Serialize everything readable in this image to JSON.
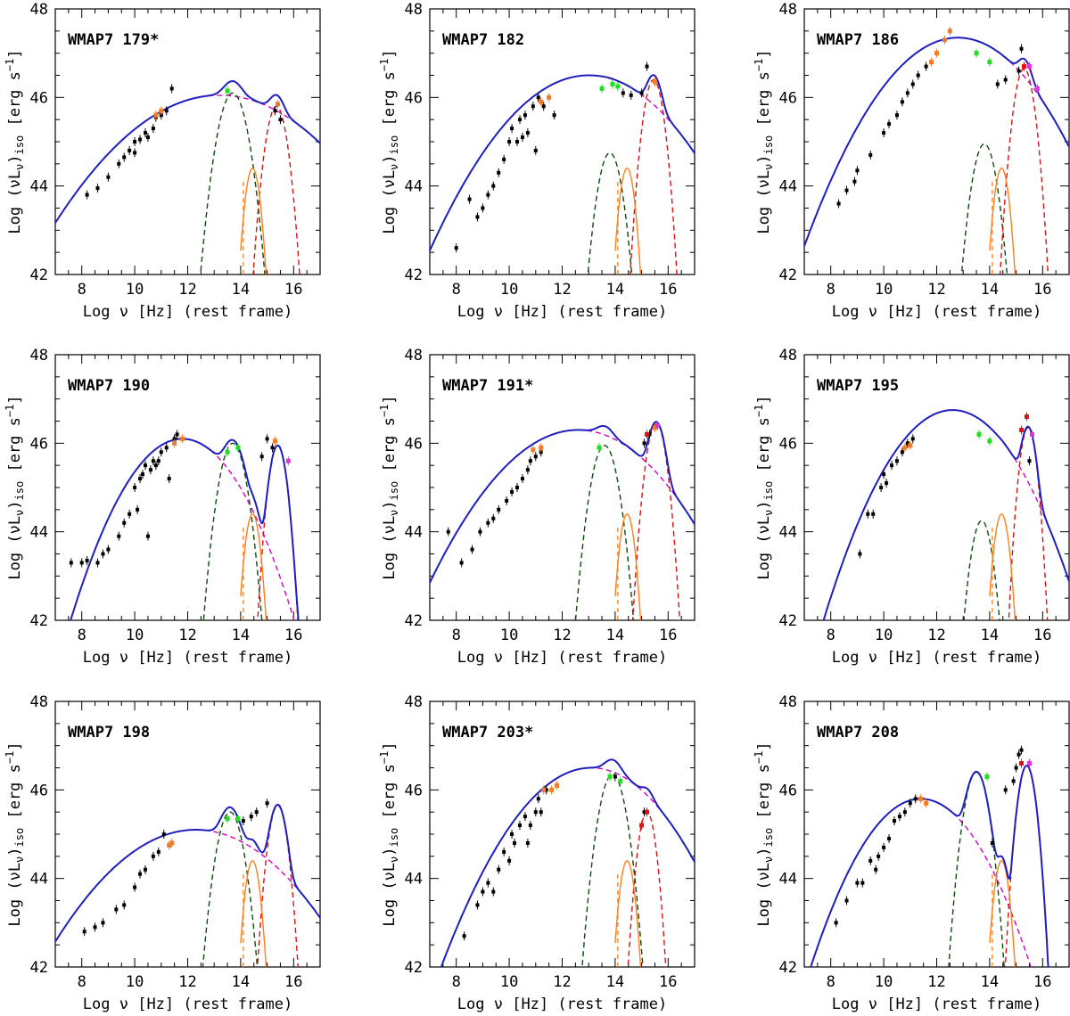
{
  "figure": {
    "x_axis_title": "Log ν [Hz] (rest frame)",
    "y_axis_title_main": "Log (νL",
    "y_axis_title_sub_nu": "ν",
    "y_axis_title_close": ")",
    "y_axis_title_iso": "iso",
    "y_axis_title_unit": " [erg s",
    "y_axis_title_exp": "−1",
    "y_axis_title_end": "]",
    "x_ticks": [
      "8",
      "10",
      "12",
      "14",
      "16"
    ],
    "y_ticks": [
      "42",
      "44",
      "46",
      "48"
    ],
    "colors": {
      "total": "#1f1fbf",
      "synchrotron": "#d400c8",
      "torus": "#0e4a0e",
      "disk": "#d41414",
      "host": "#ff7f1a",
      "data_black": "#000000",
      "data_orange": "#f07b2a",
      "data_green": "#22dd22",
      "data_magenta": "#e030e0",
      "data_red": "#e01010"
    }
  },
  "chart_data": [
    {
      "type": "scatter",
      "title": "WMAP7 179*",
      "xlim": [
        7,
        17
      ],
      "ylim": [
        42,
        48
      ],
      "sync": {
        "peak_x": 13.2,
        "peak_y": 46.05,
        "curv": 0.075
      },
      "torus": {
        "x": 13.7,
        "y": 46.1,
        "w": 0.6
      },
      "disk": {
        "x": 15.35,
        "y": 45.8,
        "w": 0.45
      },
      "observations": [
        [
          8.2,
          43.8
        ],
        [
          8.6,
          43.95
        ],
        [
          9.0,
          44.2
        ],
        [
          9.4,
          44.5
        ],
        [
          9.6,
          44.65
        ],
        [
          9.8,
          44.8
        ],
        [
          10.0,
          45.0
        ],
        [
          10.0,
          44.75
        ],
        [
          10.2,
          45.05
        ],
        [
          10.4,
          45.2
        ],
        [
          10.5,
          45.1
        ],
        [
          10.7,
          45.3
        ],
        [
          10.8,
          45.55
        ],
        [
          11.0,
          45.6
        ],
        [
          11.2,
          45.7
        ],
        [
          11.4,
          46.2
        ],
        [
          15.3,
          45.7
        ],
        [
          15.5,
          45.5
        ]
      ],
      "orange_points": [
        [
          10.8,
          45.6
        ],
        [
          11.0,
          45.7
        ],
        [
          15.4,
          45.85
        ]
      ],
      "green_points": [
        [
          13.5,
          46.15
        ]
      ],
      "magenta_points": [],
      "red_points": []
    },
    {
      "type": "scatter",
      "title": "WMAP7 182",
      "xlim": [
        7,
        17
      ],
      "ylim": [
        42,
        48
      ],
      "sync": {
        "peak_x": 13.0,
        "peak_y": 46.5,
        "curv": 0.11
      },
      "torus": {
        "x": 13.8,
        "y": 44.75,
        "w": 0.5
      },
      "disk": {
        "x": 15.45,
        "y": 46.4,
        "w": 0.42
      },
      "observations": [
        [
          8.0,
          42.6
        ],
        [
          8.5,
          43.7
        ],
        [
          8.8,
          43.3
        ],
        [
          9.0,
          43.5
        ],
        [
          9.2,
          43.8
        ],
        [
          9.4,
          44.0
        ],
        [
          9.6,
          44.3
        ],
        [
          9.8,
          44.6
        ],
        [
          10.0,
          45.0
        ],
        [
          10.1,
          45.3
        ],
        [
          10.3,
          45.0
        ],
        [
          10.4,
          45.5
        ],
        [
          10.5,
          45.1
        ],
        [
          10.6,
          45.6
        ],
        [
          10.7,
          45.2
        ],
        [
          10.9,
          45.8
        ],
        [
          11.0,
          44.8
        ],
        [
          11.1,
          46.0
        ],
        [
          11.3,
          45.8
        ],
        [
          11.7,
          45.6
        ],
        [
          14.3,
          46.1
        ],
        [
          14.6,
          46.05
        ],
        [
          15.0,
          46.1
        ],
        [
          15.2,
          46.7
        ]
      ],
      "orange_points": [
        [
          11.2,
          45.9
        ],
        [
          11.5,
          46.0
        ],
        [
          15.5,
          46.35
        ]
      ],
      "green_points": [
        [
          13.5,
          46.2
        ],
        [
          13.9,
          46.3
        ],
        [
          14.1,
          46.25
        ]
      ],
      "magenta_points": [],
      "red_points": []
    },
    {
      "type": "scatter",
      "title": "WMAP7 186",
      "xlim": [
        7,
        17
      ],
      "ylim": [
        42,
        48
      ],
      "sync": {
        "peak_x": 12.8,
        "peak_y": 47.35,
        "curv": 0.14
      },
      "torus": {
        "x": 13.8,
        "y": 44.95,
        "w": 0.5
      },
      "disk": {
        "x": 15.3,
        "y": 46.65,
        "w": 0.42
      },
      "observations": [
        [
          8.3,
          43.6
        ],
        [
          8.6,
          43.9
        ],
        [
          8.9,
          44.1
        ],
        [
          9.0,
          44.35
        ],
        [
          9.5,
          44.7
        ],
        [
          10.0,
          45.2
        ],
        [
          10.2,
          45.4
        ],
        [
          10.5,
          45.6
        ],
        [
          10.7,
          45.9
        ],
        [
          10.9,
          46.1
        ],
        [
          11.1,
          46.3
        ],
        [
          11.3,
          46.5
        ],
        [
          11.6,
          46.7
        ],
        [
          14.3,
          46.3
        ],
        [
          14.6,
          46.4
        ],
        [
          15.1,
          46.6
        ],
        [
          15.2,
          47.1
        ]
      ],
      "orange_points": [
        [
          11.8,
          46.8
        ],
        [
          12.0,
          47.0
        ],
        [
          12.3,
          47.3
        ],
        [
          12.5,
          47.5
        ]
      ],
      "green_points": [
        [
          13.5,
          47.0
        ],
        [
          14.0,
          46.8
        ]
      ],
      "magenta_points": [
        [
          15.5,
          46.7
        ],
        [
          15.8,
          46.2
        ]
      ],
      "red_points": [
        [
          15.3,
          46.7
        ]
      ]
    },
    {
      "type": "scatter",
      "title": "WMAP7 190",
      "xlim": [
        7,
        17
      ],
      "ylim": [
        42,
        48
      ],
      "sync": {
        "peak_x": 11.8,
        "peak_y": 46.1,
        "curv": 0.23
      },
      "torus": {
        "x": 13.7,
        "y": 46.0,
        "w": 0.55
      },
      "disk": {
        "x": 15.4,
        "y": 45.95,
        "w": 0.38
      },
      "observations": [
        [
          7.6,
          43.3
        ],
        [
          8.0,
          43.3
        ],
        [
          8.2,
          43.35
        ],
        [
          8.6,
          43.3
        ],
        [
          8.8,
          43.5
        ],
        [
          9.0,
          43.6
        ],
        [
          9.4,
          43.9
        ],
        [
          9.6,
          44.2
        ],
        [
          9.8,
          44.4
        ],
        [
          10.0,
          45.0
        ],
        [
          10.1,
          44.5
        ],
        [
          10.2,
          45.2
        ],
        [
          10.3,
          45.3
        ],
        [
          10.4,
          45.5
        ],
        [
          10.5,
          43.9
        ],
        [
          10.6,
          45.4
        ],
        [
          10.7,
          45.6
        ],
        [
          10.8,
          45.5
        ],
        [
          10.9,
          45.6
        ],
        [
          11.0,
          45.8
        ],
        [
          11.2,
          45.9
        ],
        [
          11.3,
          45.2
        ],
        [
          11.5,
          46.1
        ],
        [
          11.6,
          46.2
        ],
        [
          14.8,
          45.7
        ],
        [
          15.0,
          46.1
        ],
        [
          15.2,
          45.9
        ]
      ],
      "orange_points": [
        [
          11.5,
          46.0
        ],
        [
          11.8,
          46.1
        ],
        [
          15.3,
          46.05
        ]
      ],
      "green_points": [
        [
          13.5,
          45.8
        ],
        [
          13.9,
          45.9
        ]
      ],
      "magenta_points": [
        [
          15.8,
          45.6
        ]
      ],
      "red_points": []
    },
    {
      "type": "scatter",
      "title": "WMAP7 191*",
      "xlim": [
        7,
        17
      ],
      "ylim": [
        42,
        48
      ],
      "sync": {
        "peak_x": 12.6,
        "peak_y": 46.3,
        "curv": 0.11
      },
      "torus": {
        "x": 13.6,
        "y": 45.95,
        "w": 0.55
      },
      "disk": {
        "x": 15.55,
        "y": 46.45,
        "w": 0.42
      },
      "observations": [
        [
          7.7,
          44.0
        ],
        [
          8.2,
          43.3
        ],
        [
          8.6,
          43.6
        ],
        [
          8.9,
          44.0
        ],
        [
          9.2,
          44.2
        ],
        [
          9.4,
          44.3
        ],
        [
          9.6,
          44.5
        ],
        [
          9.9,
          44.7
        ],
        [
          10.1,
          44.9
        ],
        [
          10.3,
          45.0
        ],
        [
          10.5,
          45.2
        ],
        [
          10.7,
          45.4
        ],
        [
          10.8,
          45.6
        ],
        [
          11.0,
          45.7
        ],
        [
          11.2,
          45.8
        ],
        [
          15.1,
          46.0
        ],
        [
          15.3,
          46.2
        ]
      ],
      "orange_points": [
        [
          10.9,
          45.85
        ],
        [
          11.2,
          45.9
        ],
        [
          15.5,
          46.35
        ]
      ],
      "green_points": [
        [
          13.4,
          45.9
        ]
      ],
      "magenta_points": [
        [
          15.6,
          46.4
        ]
      ],
      "red_points": [
        [
          15.2,
          46.2
        ]
      ]
    },
    {
      "type": "scatter",
      "title": "WMAP7 195",
      "xlim": [
        7,
        17
      ],
      "ylim": [
        42,
        48
      ],
      "sync": {
        "peak_x": 12.6,
        "peak_y": 46.75,
        "curv": 0.2
      },
      "torus": {
        "x": 13.7,
        "y": 44.25,
        "w": 0.45
      },
      "disk": {
        "x": 15.45,
        "y": 46.35,
        "w": 0.35
      },
      "observations": [
        [
          9.1,
          43.5
        ],
        [
          9.4,
          44.4
        ],
        [
          9.6,
          44.4
        ],
        [
          9.9,
          45.0
        ],
        [
          10.0,
          45.3
        ],
        [
          10.1,
          45.1
        ],
        [
          10.3,
          45.5
        ],
        [
          10.5,
          45.6
        ],
        [
          10.7,
          45.8
        ],
        [
          10.9,
          46.0
        ],
        [
          11.1,
          46.1
        ],
        [
          15.5,
          45.6
        ]
      ],
      "orange_points": [
        [
          10.8,
          45.9
        ],
        [
          11.0,
          45.95
        ]
      ],
      "green_points": [
        [
          13.6,
          46.2
        ],
        [
          14.0,
          46.05
        ]
      ],
      "magenta_points": [
        [
          15.6,
          46.2
        ]
      ],
      "red_points": [
        [
          15.2,
          46.3
        ],
        [
          15.4,
          46.6
        ]
      ]
    },
    {
      "type": "scatter",
      "title": "WMAP7 198",
      "xlim": [
        7,
        17
      ],
      "ylim": [
        42,
        48
      ],
      "sync": {
        "peak_x": 12.3,
        "peak_y": 45.1,
        "curv": 0.09
      },
      "torus": {
        "x": 13.6,
        "y": 45.5,
        "w": 0.55
      },
      "disk": {
        "x": 15.4,
        "y": 45.65,
        "w": 0.4
      },
      "observations": [
        [
          8.1,
          42.8
        ],
        [
          8.5,
          42.9
        ],
        [
          8.8,
          43.0
        ],
        [
          9.3,
          43.3
        ],
        [
          9.6,
          43.4
        ],
        [
          10.0,
          43.8
        ],
        [
          10.2,
          44.1
        ],
        [
          10.4,
          44.2
        ],
        [
          10.7,
          44.5
        ],
        [
          10.9,
          44.6
        ],
        [
          11.1,
          45.0
        ],
        [
          14.1,
          45.3
        ],
        [
          14.4,
          45.4
        ],
        [
          14.6,
          45.5
        ],
        [
          15.0,
          45.7
        ]
      ],
      "orange_points": [
        [
          11.3,
          44.75
        ],
        [
          11.4,
          44.8
        ]
      ],
      "green_points": [
        [
          13.5,
          45.35
        ],
        [
          13.9,
          45.35
        ]
      ],
      "magenta_points": [],
      "red_points": []
    },
    {
      "type": "scatter",
      "title": "WMAP7 203*",
      "xlim": [
        7,
        17
      ],
      "ylim": [
        42,
        48
      ],
      "sync": {
        "peak_x": 13.1,
        "peak_y": 46.5,
        "curv": 0.14
      },
      "torus": {
        "x": 13.9,
        "y": 46.35,
        "w": 0.55
      },
      "disk": {
        "x": 15.2,
        "y": 45.5,
        "w": 0.38
      },
      "observations": [
        [
          8.3,
          42.7
        ],
        [
          8.8,
          43.4
        ],
        [
          9.0,
          43.7
        ],
        [
          9.2,
          43.9
        ],
        [
          9.4,
          43.7
        ],
        [
          9.6,
          44.2
        ],
        [
          9.8,
          44.6
        ],
        [
          10.0,
          44.4
        ],
        [
          10.1,
          45.0
        ],
        [
          10.2,
          44.8
        ],
        [
          10.4,
          45.2
        ],
        [
          10.6,
          45.4
        ],
        [
          10.7,
          44.8
        ],
        [
          10.8,
          45.2
        ],
        [
          11.0,
          45.5
        ],
        [
          11.1,
          45.8
        ],
        [
          11.2,
          45.5
        ],
        [
          11.4,
          46.0
        ],
        [
          14.0,
          46.3
        ],
        [
          15.1,
          45.5
        ]
      ],
      "orange_points": [
        [
          11.3,
          46.0
        ],
        [
          11.6,
          46.0
        ],
        [
          11.8,
          46.1
        ]
      ],
      "green_points": [
        [
          13.8,
          46.3
        ],
        [
          14.2,
          46.2
        ]
      ],
      "magenta_points": [],
      "red_points": [
        [
          15.0,
          45.2
        ],
        [
          15.2,
          45.5
        ]
      ]
    },
    {
      "type": "scatter",
      "title": "WMAP7 208",
      "xlim": [
        7,
        17
      ],
      "ylim": [
        42,
        48
      ],
      "sync": {
        "peak_x": 11.4,
        "peak_y": 45.8,
        "curv": 0.22
      },
      "torus": {
        "x": 13.5,
        "y": 46.4,
        "w": 0.5
      },
      "disk": {
        "x": 15.4,
        "y": 46.55,
        "w": 0.38
      },
      "observations": [
        [
          8.2,
          43.0
        ],
        [
          8.6,
          43.5
        ],
        [
          9.0,
          43.9
        ],
        [
          9.2,
          43.9
        ],
        [
          9.5,
          44.4
        ],
        [
          9.7,
          44.2
        ],
        [
          9.8,
          44.5
        ],
        [
          10.0,
          44.7
        ],
        [
          10.2,
          44.9
        ],
        [
          10.4,
          45.3
        ],
        [
          10.6,
          45.4
        ],
        [
          10.8,
          45.5
        ],
        [
          11.0,
          45.7
        ],
        [
          11.2,
          45.8
        ],
        [
          14.1,
          44.8
        ],
        [
          14.6,
          46.0
        ],
        [
          14.9,
          46.2
        ],
        [
          15.0,
          46.5
        ],
        [
          15.1,
          46.8
        ],
        [
          15.2,
          46.9
        ]
      ],
      "orange_points": [
        [
          11.4,
          45.8
        ],
        [
          11.6,
          45.7
        ]
      ],
      "green_points": [
        [
          13.9,
          46.3
        ]
      ],
      "magenta_points": [
        [
          15.5,
          46.6
        ]
      ],
      "red_points": [
        [
          15.2,
          46.6
        ]
      ]
    }
  ]
}
